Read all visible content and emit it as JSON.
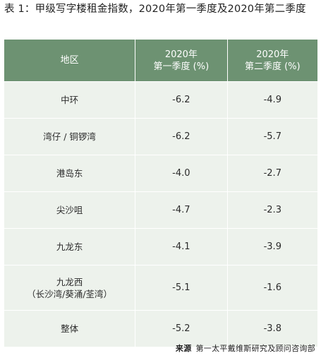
{
  "title": "表 1：甲级写字楼租金指数，2020年第一季度及2020年第二季度",
  "table": {
    "headers": [
      "地区",
      "2020年\n第一季度 (%)",
      "2020年\n第二季度 (%)"
    ],
    "rows": [
      {
        "region": "中环",
        "q1": "-6.2",
        "q2": "-4.9"
      },
      {
        "region": "湾仔 / 铜锣湾",
        "q1": "-6.2",
        "q2": "-5.7"
      },
      {
        "region": "港岛东",
        "q1": "-4.0",
        "q2": "-2.7"
      },
      {
        "region": "尖沙咀",
        "q1": "-4.7",
        "q2": "-2.3"
      },
      {
        "region": "九龙东",
        "q1": "-4.1",
        "q2": "-3.9"
      },
      {
        "region": "九龙西\n（长沙湾/葵涌/荃湾）",
        "q1": "-5.1",
        "q2": "-1.6"
      },
      {
        "region": "整体",
        "q1": "-5.2",
        "q2": "-3.8"
      }
    ]
  },
  "source": {
    "label": "来源",
    "text": "第一太平戴维斯研究及顾问咨询部"
  },
  "colors": {
    "header_bg": "#6d9272",
    "row_bg": "#edf2ec"
  }
}
